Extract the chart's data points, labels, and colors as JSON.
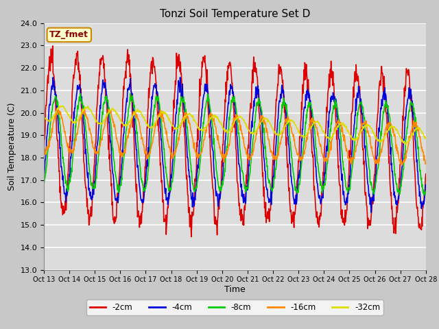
{
  "title": "Tonzi Soil Temperature Set D",
  "xlabel": "Time",
  "ylabel": "Soil Temperature (C)",
  "ylim": [
    13.0,
    24.0
  ],
  "yticks": [
    13.0,
    14.0,
    15.0,
    16.0,
    17.0,
    18.0,
    19.0,
    20.0,
    21.0,
    22.0,
    23.0,
    24.0
  ],
  "xtick_labels": [
    "Oct 13",
    "Oct 14",
    "Oct 15",
    "Oct 16",
    "Oct 17",
    "Oct 18",
    "Oct 19",
    "Oct 20",
    "Oct 21",
    "Oct 22",
    "Oct 23",
    "Oct 24",
    "Oct 25",
    "Oct 26",
    "Oct 27",
    "Oct 28"
  ],
  "series": {
    "-2cm": {
      "color": "#dd0000",
      "lw": 1.2
    },
    "-4cm": {
      "color": "#0000dd",
      "lw": 1.2
    },
    "-8cm": {
      "color": "#00cc00",
      "lw": 1.2
    },
    "-16cm": {
      "color": "#ff8800",
      "lw": 1.2
    },
    "-32cm": {
      "color": "#dddd00",
      "lw": 1.2
    }
  },
  "legend_label": "TZ_fmet",
  "legend_bg": "#ffffcc",
  "legend_border": "#cc8800",
  "legend_text_color": "#8b0000",
  "fig_bg": "#c8c8c8",
  "plot_bg": "#dcdcdc",
  "n_points": 960,
  "num_days": 15
}
